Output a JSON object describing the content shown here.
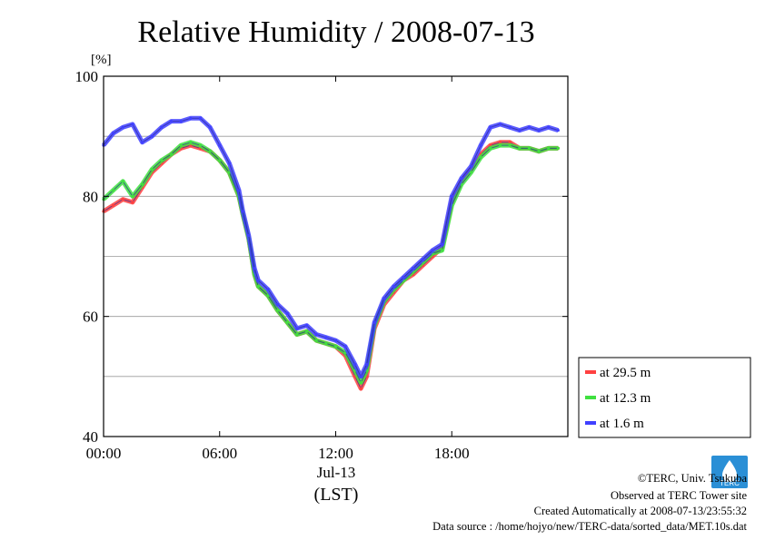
{
  "chart_data": {
    "type": "line",
    "title": "Relative Humidity / 2008-07-13",
    "ylabel": "[%]",
    "xlabel_date": "Jul-13",
    "xlabel_unit": "(LST)",
    "ylim": [
      40,
      100
    ],
    "xlim": [
      0,
      24
    ],
    "yticks": [
      40,
      60,
      80,
      100
    ],
    "ygrid": [
      50,
      60,
      70,
      80,
      90
    ],
    "xticks": [
      {
        "value": 0,
        "label": "00:00"
      },
      {
        "value": 6,
        "label": "06:00"
      },
      {
        "value": 12,
        "label": "12:00"
      },
      {
        "value": 18,
        "label": "18:00"
      }
    ],
    "grid": true,
    "legend_position": "right",
    "series": [
      {
        "name": "at 29.5 m",
        "color": "#ff4040",
        "x": [
          0,
          0.5,
          1,
          1.5,
          2,
          2.5,
          3,
          3.5,
          4,
          4.5,
          5,
          5.5,
          6,
          6.5,
          7,
          7.2,
          7.5,
          7.8,
          8,
          8.5,
          9,
          9.5,
          10,
          10.5,
          11,
          11.5,
          12,
          12.5,
          13,
          13.3,
          13.6,
          14,
          14.5,
          15,
          15.5,
          16,
          16.5,
          17,
          17.5,
          18,
          18.5,
          19,
          19.5,
          20,
          20.5,
          21,
          21.5,
          22,
          22.5,
          23,
          23.5
        ],
        "values": [
          77.5,
          78.5,
          79.5,
          79,
          81.5,
          84,
          85.5,
          87,
          88,
          88.5,
          88,
          87.5,
          86,
          84,
          80,
          77,
          73,
          67,
          65,
          63.5,
          61,
          59,
          57,
          57.5,
          56,
          55.5,
          55,
          53.5,
          50,
          48,
          50,
          58,
          62,
          64,
          66,
          67,
          68.5,
          70,
          71.5,
          79,
          82.5,
          84.5,
          87,
          88.5,
          89,
          89,
          88,
          88,
          87.5,
          88,
          88
        ]
      },
      {
        "name": "at 12.3 m",
        "color": "#40e040",
        "x": [
          0,
          0.5,
          1,
          1.5,
          2,
          2.5,
          3,
          3.5,
          4,
          4.5,
          5,
          5.5,
          6,
          6.5,
          7,
          7.2,
          7.5,
          7.8,
          8,
          8.5,
          9,
          9.5,
          10,
          10.5,
          11,
          11.5,
          12,
          12.5,
          13,
          13.3,
          13.6,
          14,
          14.5,
          15,
          15.5,
          16,
          16.5,
          17,
          17.5,
          18,
          18.5,
          19,
          19.5,
          20,
          20.5,
          21,
          21.5,
          22,
          22.5,
          23,
          23.5
        ],
        "values": [
          79.5,
          81,
          82.5,
          80,
          82,
          84.5,
          86,
          87,
          88.5,
          89,
          88.5,
          87.5,
          86,
          84,
          80,
          77,
          73,
          67,
          65,
          63.5,
          61,
          59,
          57,
          57.5,
          56,
          55.5,
          55,
          54,
          51,
          49,
          51,
          58.5,
          62.5,
          64.5,
          66,
          67.5,
          69,
          70.5,
          71,
          78.5,
          82,
          84,
          86.5,
          88,
          88.5,
          88.5,
          88,
          88,
          87.5,
          88,
          88
        ]
      },
      {
        "name": "at 1.6 m",
        "color": "#4040ff",
        "x": [
          0,
          0.5,
          1,
          1.5,
          2,
          2.5,
          3,
          3.5,
          4,
          4.5,
          5,
          5.5,
          6,
          6.5,
          7,
          7.2,
          7.5,
          7.8,
          8,
          8.5,
          9,
          9.5,
          10,
          10.5,
          11,
          11.5,
          12,
          12.5,
          13,
          13.3,
          13.6,
          14,
          14.5,
          15,
          15.5,
          16,
          16.5,
          17,
          17.5,
          18,
          18.5,
          19,
          19.5,
          20,
          20.5,
          21,
          21.5,
          22,
          22.5,
          23,
          23.5
        ],
        "values": [
          88.5,
          90.5,
          91.5,
          92,
          89,
          90,
          91.5,
          92.5,
          92.5,
          93,
          93,
          91.5,
          88.5,
          85.5,
          81,
          77.5,
          73.5,
          68,
          66,
          64.5,
          62,
          60.5,
          58,
          58.5,
          57,
          56.5,
          56,
          55,
          52,
          50,
          52,
          59,
          63,
          65,
          66.5,
          68,
          69.5,
          71,
          72,
          80,
          83,
          85,
          88.5,
          91.5,
          92,
          91.5,
          91,
          91.5,
          91,
          91.5,
          91
        ]
      }
    ]
  },
  "credits": {
    "copyright": "©TERC, Univ. Tsukuba",
    "site": "Observed at TERC Tower site",
    "created": "Created Automatically at 2008-07-13/23:55:32",
    "source": "Data source : /home/hojyo/new/TERC-data/sorted_data/MET.10s.dat",
    "logo_text": "TERC"
  }
}
